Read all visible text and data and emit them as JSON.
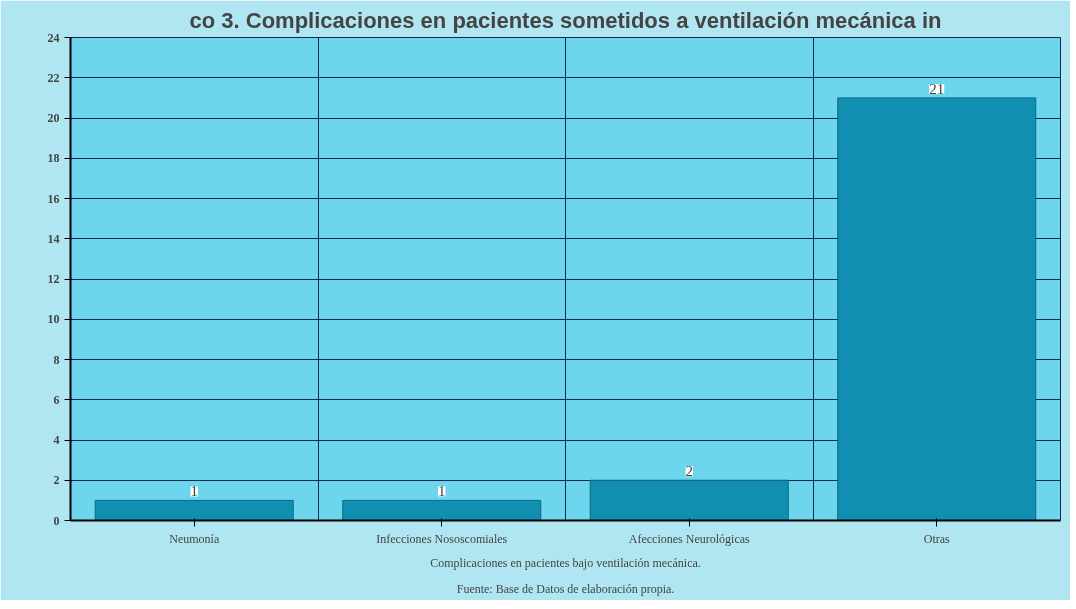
{
  "chart_data": {
    "type": "bar",
    "title": "co 3. Complicaciones en pacientes sometidos a ventilación mecánica in",
    "categories": [
      "Neumonía",
      "Infecciones Nososcomiales",
      "Afecciones Neurológicas",
      "Otras"
    ],
    "values": [
      1,
      1,
      2,
      21
    ],
    "color": "#118fb0",
    "ylim": [
      0,
      24
    ],
    "yticks": [
      0,
      2,
      4,
      6,
      8,
      10,
      12,
      14,
      16,
      18,
      20,
      22,
      24
    ],
    "grid": true,
    "data_labels": true,
    "annotations": [
      "Complicaciones en pacientes bajo ventilación mecánica.",
      "Fuente: Base de Datos de elaboración propia."
    ]
  }
}
